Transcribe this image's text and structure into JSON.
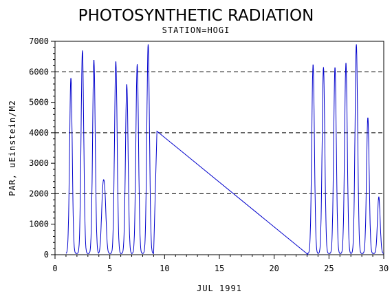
{
  "chart_data": {
    "type": "line",
    "title": "PHOTOSYNTHETIC RADIATION",
    "subtitle": "STATION=HOGI",
    "xlabel": "JUL 1991",
    "ylabel": "PAR, uEinstein/M2",
    "xlim": [
      0,
      30
    ],
    "ylim": [
      0,
      7000
    ],
    "x_ticks": [
      0,
      5,
      10,
      15,
      20,
      25,
      30
    ],
    "y_ticks": [
      0,
      1000,
      2000,
      3000,
      4000,
      5000,
      6000,
      7000
    ],
    "reference_lines_y": [
      2000,
      4000,
      6000
    ],
    "line_color": "#0000cc",
    "series": [
      {
        "daily_peaks": [
          {
            "day": 1,
            "peaks": [
              [
                1.45,
                5800
              ]
            ]
          },
          {
            "day": 2,
            "peaks": [
              [
                2.5,
                6700
              ]
            ]
          },
          {
            "day": 3,
            "peaks": [
              [
                3.55,
                6400
              ]
            ]
          },
          {
            "day": 4,
            "peaks": [
              [
                4.35,
                1800
              ],
              [
                4.55,
                1700
              ]
            ]
          },
          {
            "day": 5,
            "peaks": [
              [
                5.55,
                6350
              ]
            ]
          },
          {
            "day": 6,
            "peaks": [
              [
                6.55,
                5600
              ]
            ]
          },
          {
            "day": 7,
            "peaks": [
              [
                7.5,
                6250
              ]
            ]
          },
          {
            "day": 8,
            "peaks": [
              [
                8.5,
                6900
              ]
            ]
          },
          {
            "day": 23,
            "peaks": [
              [
                23.55,
                6250
              ]
            ]
          },
          {
            "day": 24,
            "peaks": [
              [
                24.5,
                6150
              ]
            ]
          },
          {
            "day": 25,
            "peaks": [
              [
                25.55,
                6150
              ]
            ]
          },
          {
            "day": 26,
            "peaks": [
              [
                26.55,
                6300
              ]
            ]
          },
          {
            "day": 27,
            "peaks": [
              [
                27.5,
                6900
              ]
            ]
          },
          {
            "day": 28,
            "peaks": [
              [
                28.55,
                4500
              ]
            ]
          },
          {
            "day": 29,
            "peaks": [
              [
                29.55,
                1900
              ]
            ]
          }
        ],
        "gap_segment": [
          [
            9.3,
            4050
          ],
          [
            23.1,
            0
          ]
        ]
      }
    ]
  }
}
